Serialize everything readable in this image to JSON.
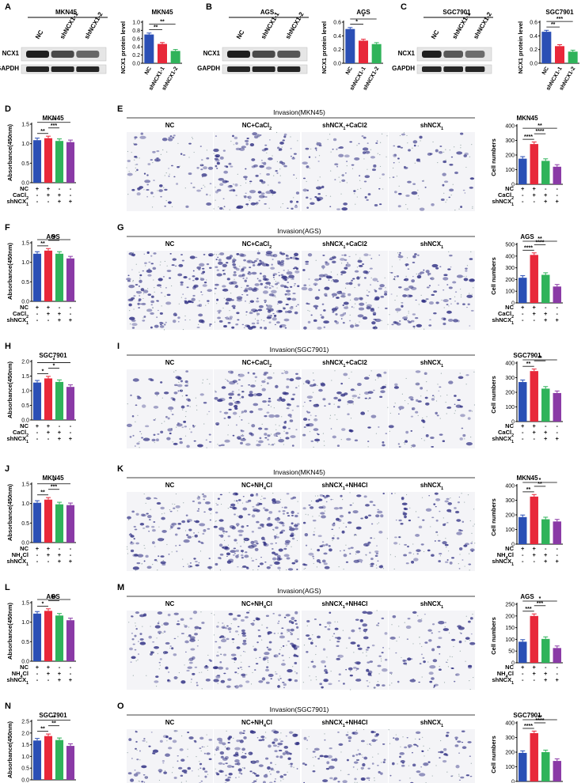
{
  "figure": {
    "top": [
      {
        "letter": "A",
        "cell": "MKN45",
        "bands": [
          "NCX1",
          "GAPDH"
        ],
        "lanes": [
          "NC",
          "shNCX1-1",
          "shNCX1-2"
        ],
        "ylabel": "NCX1 protein level",
        "ymax": 1.0,
        "ticks": [
          "0.0",
          "0.2",
          "0.4",
          "0.6",
          "0.8",
          "1.0"
        ],
        "chart_data": {
          "type": "bar",
          "title": "MKN45",
          "categories": [
            "NC",
            "shNCX1-1",
            "shNCX1-2"
          ],
          "values": [
            0.7,
            0.47,
            0.3
          ],
          "ylim": [
            0,
            1.0
          ],
          "ylabel": "NCX1 protein level",
          "sig": [
            {
              "a": 0,
              "b": 1,
              "t": "**"
            },
            {
              "a": 0,
              "b": 2,
              "t": "**"
            }
          ]
        }
      },
      {
        "letter": "B",
        "cell": "AGS",
        "bands": [
          "NCX1",
          "GAPDH"
        ],
        "lanes": [
          "NC",
          "shNCX1-1",
          "shNCX1-2"
        ],
        "ylabel": "NCX1 protein level",
        "ymax": 0.6,
        "ticks": [
          "0.0",
          "0.2",
          "0.4",
          "0.6"
        ],
        "chart_data": {
          "type": "bar",
          "title": "AGS",
          "categories": [
            "NC",
            "shNCX1-1",
            "shNCX1-2"
          ],
          "values": [
            0.5,
            0.33,
            0.28
          ],
          "ylim": [
            0,
            0.6
          ],
          "ylabel": "NCX1 protein level",
          "sig": [
            {
              "a": 0,
              "b": 1,
              "t": "*"
            },
            {
              "a": 0,
              "b": 2,
              "t": "*"
            }
          ]
        }
      },
      {
        "letter": "C",
        "cell": "SGC7901",
        "bands": [
          "NCX1",
          "GAPDH"
        ],
        "lanes": [
          "NC",
          "shNCX1-1",
          "shNCX1-2"
        ],
        "ylabel": "NCX1 protein level",
        "ymax": 0.6,
        "ticks": [
          "0.0",
          "0.2",
          "0.4",
          "0.6"
        ],
        "chart_data": {
          "type": "bar",
          "title": "SGC7901",
          "categories": [
            "NC",
            "shNCX1-1",
            "shNCX1-2"
          ],
          "values": [
            0.46,
            0.25,
            0.17
          ],
          "ylim": [
            0,
            0.6
          ],
          "ylabel": "NCX1 protein level",
          "sig": [
            {
              "a": 0,
              "b": 1,
              "t": "**"
            },
            {
              "a": 0,
              "b": 2,
              "t": "***"
            }
          ]
        }
      }
    ],
    "rows": [
      {
        "left": "D",
        "right": "E",
        "cell": "MKN45",
        "treat": "CaCl2",
        "title": "Invasion(MKN45)",
        "density": 0.5,
        "abs": {
          "ymax": 1.5,
          "ticks": [
            "0.0",
            "0.5",
            "1.0",
            "1.5"
          ],
          "values": [
            1.09,
            1.14,
            1.07,
            1.04
          ],
          "sig": [
            {
              "a": 0,
              "b": 1,
              "t": "**"
            },
            {
              "a": 1,
              "b": 2,
              "t": "***"
            },
            {
              "a": 0,
              "b": 3,
              "t": "**"
            }
          ]
        },
        "cell_chart": {
          "ymax": 400,
          "ticks": [
            "0",
            "100",
            "200",
            "300",
            "400"
          ],
          "values": [
            175,
            275,
            160,
            120
          ],
          "sig": [
            {
              "a": 0,
              "b": 1,
              "t": "****"
            },
            {
              "a": 1,
              "b": 2,
              "t": "****"
            },
            {
              "a": 0,
              "b": 3,
              "t": "**"
            }
          ]
        }
      },
      {
        "left": "F",
        "right": "G",
        "cell": "AGS",
        "treat": "CaCl2",
        "title": "Invasion(AGS)",
        "density": 1.0,
        "abs": {
          "ymax": 1.5,
          "ticks": [
            "0.0",
            "0.5",
            "1.0",
            "1.5"
          ],
          "values": [
            1.22,
            1.3,
            1.22,
            1.1
          ],
          "sig": [
            {
              "a": 0,
              "b": 1,
              "t": "**"
            },
            {
              "a": 1,
              "b": 2,
              "t": "*"
            },
            {
              "a": 0,
              "b": 3,
              "t": "**"
            }
          ]
        },
        "cell_chart": {
          "ymax": 500,
          "ticks": [
            "0",
            "100",
            "200",
            "300",
            "400",
            "500"
          ],
          "values": [
            215,
            410,
            240,
            140
          ],
          "sig": [
            {
              "a": 0,
              "b": 1,
              "t": "****"
            },
            {
              "a": 1,
              "b": 2,
              "t": "****"
            },
            {
              "a": 0,
              "b": 3,
              "t": "**"
            }
          ]
        }
      },
      {
        "left": "H",
        "right": "I",
        "cell": "SGC7901",
        "treat": "CaCl2",
        "title": "Invasion(SGC7901)",
        "density": 0.55,
        "abs": {
          "ymax": 2.0,
          "ticks": [
            "0.0",
            "0.5",
            "1.0",
            "1.5",
            "2.0"
          ],
          "values": [
            1.28,
            1.42,
            1.3,
            1.13
          ],
          "sig": [
            {
              "a": 0,
              "b": 1,
              "t": "*"
            },
            {
              "a": 1,
              "b": 2,
              "t": "*"
            },
            {
              "a": 0,
              "b": 3,
              "t": "*"
            }
          ]
        },
        "cell_chart": {
          "ymax": 400,
          "ticks": [
            "0",
            "100",
            "200",
            "300",
            "400"
          ],
          "values": [
            270,
            345,
            225,
            195
          ],
          "sig": [
            {
              "a": 0,
              "b": 1,
              "t": "**"
            },
            {
              "a": 1,
              "b": 2,
              "t": "**"
            },
            {
              "a": 0,
              "b": 3,
              "t": "*"
            }
          ]
        }
      },
      {
        "left": "J",
        "right": "K",
        "cell": "MKN45",
        "treat": "NH4Cl",
        "title": "Invasion(MKN45)",
        "density": 0.75,
        "abs": {
          "ymax": 1.5,
          "ticks": [
            "0.0",
            "0.5",
            "1.0",
            "1.5"
          ],
          "values": [
            1.02,
            1.1,
            0.98,
            0.96
          ],
          "sig": [
            {
              "a": 0,
              "b": 1,
              "t": "**"
            },
            {
              "a": 1,
              "b": 2,
              "t": "***"
            },
            {
              "a": 0,
              "b": 3,
              "t": "*"
            }
          ]
        },
        "cell_chart": {
          "ymax": 400,
          "ticks": [
            "0",
            "100",
            "200",
            "300",
            "400"
          ],
          "values": [
            185,
            325,
            170,
            155
          ],
          "sig": [
            {
              "a": 0,
              "b": 1,
              "t": "**"
            },
            {
              "a": 1,
              "b": 2,
              "t": "**"
            },
            {
              "a": 0,
              "b": 3,
              "t": "*"
            }
          ]
        }
      },
      {
        "left": "L",
        "right": "M",
        "cell": "AGS",
        "treat": "NH4Cl",
        "title": "Invasion(AGS)",
        "density": 0.6,
        "abs": {
          "ymax": 1.5,
          "ticks": [
            "0.0",
            "0.5",
            "1.0",
            "1.5"
          ],
          "values": [
            1.22,
            1.29,
            1.17,
            1.05
          ],
          "sig": [
            {
              "a": 0,
              "b": 1,
              "t": "*"
            },
            {
              "a": 1,
              "b": 2,
              "t": "**"
            },
            {
              "a": 0,
              "b": 3,
              "t": "**"
            }
          ]
        },
        "cell_chart": {
          "ymax": 250,
          "ticks": [
            "0",
            "50",
            "100",
            "150",
            "200",
            "250"
          ],
          "values": [
            90,
            200,
            102,
            63
          ],
          "sig": [
            {
              "a": 0,
              "b": 1,
              "t": "***"
            },
            {
              "a": 1,
              "b": 2,
              "t": "***"
            },
            {
              "a": 0,
              "b": 3,
              "t": "*"
            }
          ]
        }
      },
      {
        "left": "N",
        "right": "O",
        "cell": "SGC7901",
        "treat": "NH4Cl",
        "title": "Invasion(SGC7901)",
        "density": 0.7,
        "abs": {
          "ymax": 2.5,
          "ticks": [
            "0.0",
            "0.5",
            "1.0",
            "1.5",
            "2.0",
            "2.5"
          ],
          "values": [
            1.68,
            1.87,
            1.7,
            1.45
          ],
          "sig": [
            {
              "a": 0,
              "b": 1,
              "t": "**"
            },
            {
              "a": 1,
              "b": 2,
              "t": "**"
            },
            {
              "a": 0,
              "b": 3,
              "t": "**"
            }
          ]
        },
        "cell_chart": {
          "ymax": 400,
          "ticks": [
            "0",
            "100",
            "200",
            "300",
            "400"
          ],
          "values": [
            195,
            330,
            200,
            140
          ],
          "sig": [
            {
              "a": 0,
              "b": 1,
              "t": "****"
            },
            {
              "a": 1,
              "b": 2,
              "t": "****"
            },
            {
              "a": 0,
              "b": 3,
              "t": "**"
            }
          ]
        }
      }
    ],
    "abs_ylabel": "Absorbance(450nm)",
    "cell_ylabel": "Cell numbers",
    "conditions": [
      "NC",
      "CaCl2",
      "shNCX1"
    ],
    "signs": [
      [
        "+",
        "+",
        "-",
        "-"
      ],
      [
        "-",
        "+",
        "+",
        "-"
      ],
      [
        "-",
        "-",
        "+",
        "+"
      ]
    ],
    "colors": {
      "NC": "#2b4fb5",
      "treat": "#e8283a",
      "combo": "#2fb35a",
      "shNCX1": "#8a3aa6",
      "stain": "#2e2e82"
    }
  }
}
